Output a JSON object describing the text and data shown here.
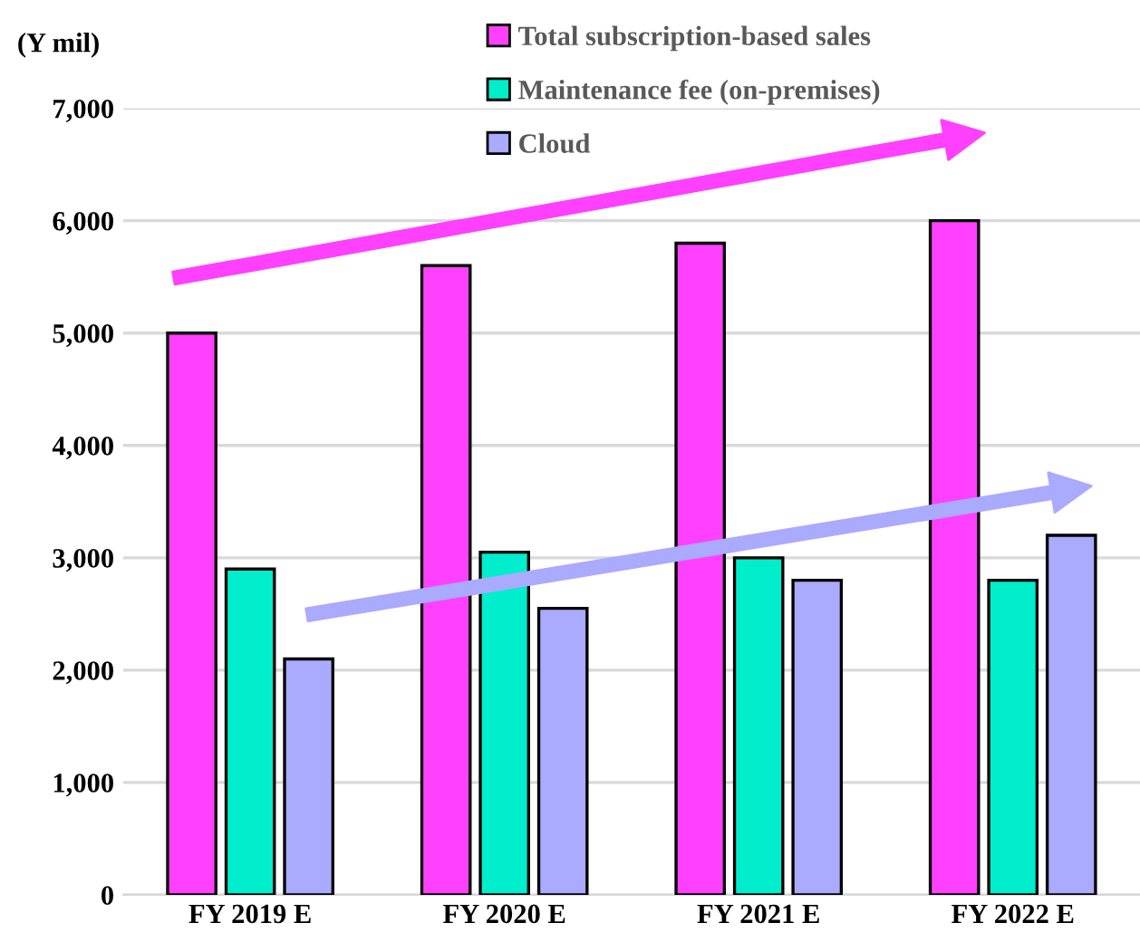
{
  "chart_data": {
    "type": "bar",
    "ylabel": "(Y mil)",
    "categories": [
      "FY 2019 E",
      "FY 2020 E",
      "FY 2021 E",
      "FY 2022 E"
    ],
    "series": [
      {
        "name": "Total subscription-based sales",
        "color": "#ff40ff",
        "values": [
          5000,
          5600,
          5800,
          6000
        ]
      },
      {
        "name": "Maintenance fee (on-premises)",
        "color": "#00eecc",
        "values": [
          2900,
          3050,
          3000,
          2800
        ]
      },
      {
        "name": "Cloud",
        "color": "#aaaaff",
        "values": [
          2100,
          2550,
          2800,
          3200
        ]
      }
    ],
    "ylim": [
      0,
      7000
    ],
    "yticks": [
      {
        "value": 0,
        "label": "0"
      },
      {
        "value": 1000,
        "label": "1,000"
      },
      {
        "value": 2000,
        "label": "2,000"
      },
      {
        "value": 3000,
        "label": "3,000"
      },
      {
        "value": 4000,
        "label": "4,000"
      },
      {
        "value": 5000,
        "label": "5,000"
      },
      {
        "value": 6000,
        "label": "6,000"
      },
      {
        "value": 7000,
        "label": "7,000"
      }
    ],
    "grid": "y",
    "legend": "top"
  }
}
